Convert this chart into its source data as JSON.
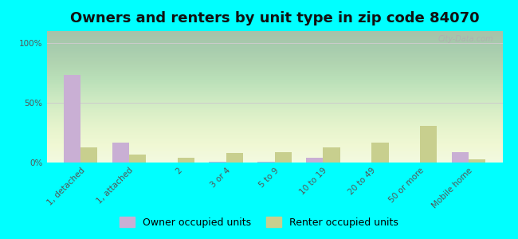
{
  "title": "Owners and renters by unit type in zip code 84070",
  "categories": [
    "1, detached",
    "1, attached",
    "2",
    "3 or 4",
    "5 to 9",
    "10 to 19",
    "20 to 49",
    "50 or more",
    "Mobile home"
  ],
  "owner_values": [
    73,
    17,
    0,
    1,
    1,
    4,
    0,
    0,
    9
  ],
  "renter_values": [
    13,
    7,
    4,
    8,
    9,
    13,
    17,
    31,
    3
  ],
  "owner_color": "#c9afd4",
  "renter_color": "#c8cf8e",
  "background_color": "#00ffff",
  "plot_bg_color": "#eef7e0",
  "ylabel_ticks": [
    "0%",
    "50%",
    "100%"
  ],
  "yticks": [
    0,
    50,
    100
  ],
  "ylim": [
    0,
    110
  ],
  "legend_owner": "Owner occupied units",
  "legend_renter": "Renter occupied units",
  "title_fontsize": 13,
  "tick_fontsize": 7.5,
  "legend_fontsize": 9,
  "bar_width": 0.35
}
